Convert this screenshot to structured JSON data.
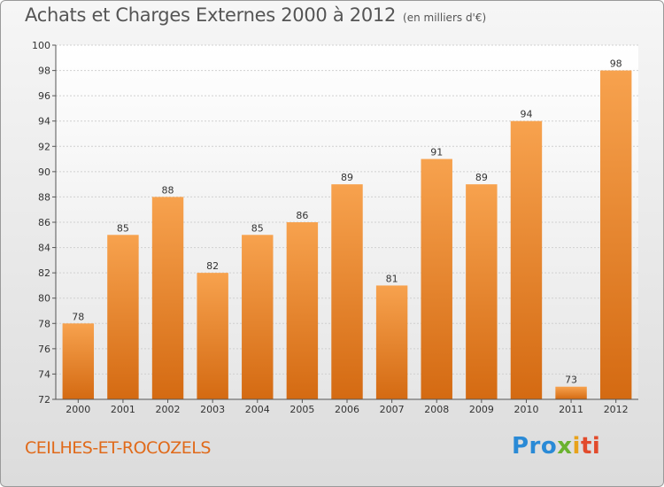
{
  "chart_data": {
    "type": "bar",
    "title": "Achats et Charges Externes 2000 à 2012",
    "subtitle": "(en milliers d'€)",
    "categories": [
      "2000",
      "2001",
      "2002",
      "2003",
      "2004",
      "2005",
      "2006",
      "2007",
      "2008",
      "2009",
      "2010",
      "2011",
      "2012"
    ],
    "values": [
      78,
      85,
      88,
      82,
      85,
      86,
      89,
      81,
      91,
      89,
      94,
      73,
      98
    ],
    "ylim": [
      72,
      100
    ],
    "yticks": [
      "72",
      "74",
      "76",
      "78",
      "80",
      "82",
      "84",
      "86",
      "88",
      "90",
      "92",
      "94",
      "96",
      "98",
      "100"
    ],
    "grid": true,
    "bar_color": "#f0913a"
  },
  "footer": {
    "place": "CEILHES-ET-ROCOZELS",
    "logo": [
      "Pro",
      "x",
      "i",
      "ti"
    ]
  }
}
